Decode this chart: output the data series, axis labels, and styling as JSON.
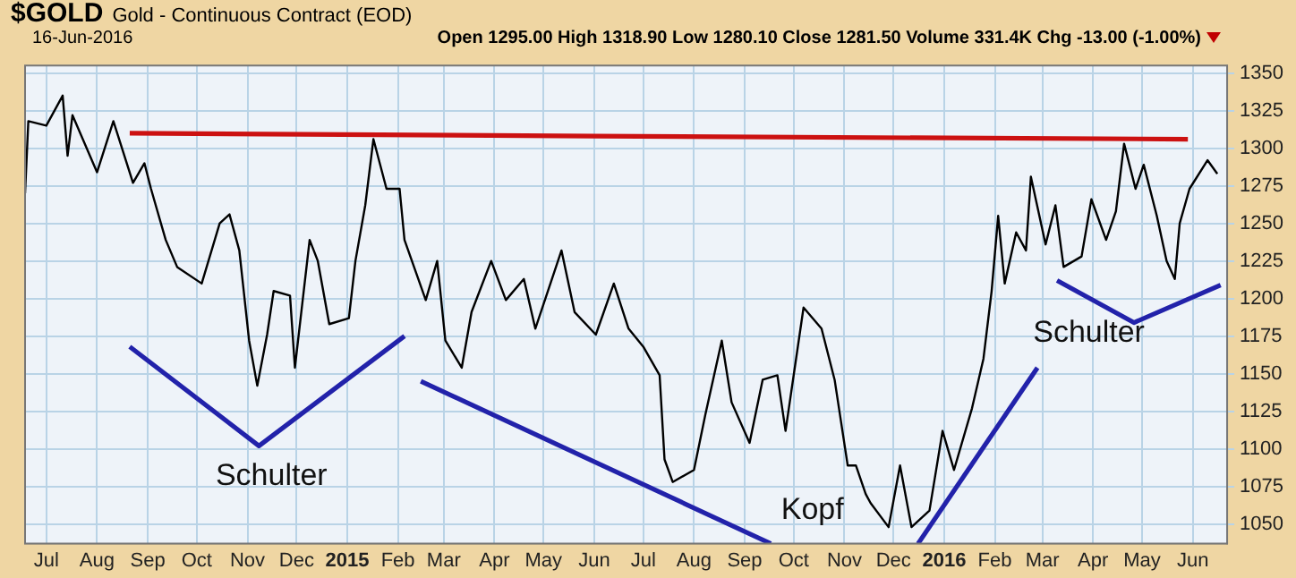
{
  "chart_data": {
    "type": "line",
    "title": "$GOLD",
    "subtitle": "Gold - Continuous Contract (EOD)",
    "annotations": [
      "16-Jun-2016",
      "Open 1295.00 High 1318.90 Low 1280.10 Close 1281.50 Volume 331.4K Chg -13.00 (-1.00%)",
      "Schulter",
      "Kopf",
      "Schulter"
    ],
    "series": [
      {
        "color": "#000000",
        "x": [
          "2014-06-18",
          "2014-06-20",
          "2014-07-01",
          "2014-07-11",
          "2014-07-14",
          "2014-07-17",
          "2014-08-01",
          "2014-08-11",
          "2014-08-23",
          "2014-08-30",
          "2014-09-03",
          "2014-09-12",
          "2014-09-19",
          "2014-10-04",
          "2014-10-15",
          "2014-10-21",
          "2014-10-27",
          "2014-11-02",
          "2014-11-07",
          "2014-11-13",
          "2014-11-17",
          "2014-11-27",
          "2014-11-30",
          "2014-12-09",
          "2014-12-14",
          "2014-12-21",
          "2015-01-02",
          "2015-01-06",
          "2015-01-12",
          "2015-01-17",
          "2015-01-25",
          "2015-02-02",
          "2015-02-05",
          "2015-02-18",
          "2015-02-25",
          "2015-03-02",
          "2015-03-12",
          "2015-03-18",
          "2015-03-30",
          "2015-04-08",
          "2015-04-19",
          "2015-04-26",
          "2015-05-12",
          "2015-05-20",
          "2015-06-02",
          "2015-06-13",
          "2015-06-22",
          "2015-07-01",
          "2015-07-11",
          "2015-07-14",
          "2015-07-19",
          "2015-08-01",
          "2015-08-08",
          "2015-08-18",
          "2015-08-24",
          "2015-09-04",
          "2015-09-12",
          "2015-09-21",
          "2015-09-26",
          "2015-10-07",
          "2015-10-18",
          "2015-10-26",
          "2015-11-03",
          "2015-11-08",
          "2015-11-14",
          "2015-11-17",
          "2015-11-28",
          "2015-12-05",
          "2015-12-12",
          "2015-12-23",
          "2015-12-31",
          "2016-01-07",
          "2016-01-18",
          "2016-01-25",
          "2016-01-30",
          "2016-02-03",
          "2016-02-07",
          "2016-02-14",
          "2016-02-20",
          "2016-02-23",
          "2016-03-03",
          "2016-03-09",
          "2016-03-14",
          "2016-03-25",
          "2016-03-31",
          "2016-04-09",
          "2016-04-15",
          "2016-04-20",
          "2016-04-27",
          "2016-05-02",
          "2016-05-10",
          "2016-05-16",
          "2016-05-21",
          "2016-05-24",
          "2016-05-30",
          "2016-06-10",
          "2016-06-16"
        ],
        "values": [
          1270,
          1318,
          1315,
          1335,
          1295,
          1322,
          1284,
          1318,
          1277,
          1290,
          1273,
          1239,
          1221,
          1210,
          1250,
          1256,
          1232,
          1172,
          1142,
          1176,
          1205,
          1202,
          1154,
          1239,
          1225,
          1183,
          1187,
          1225,
          1262,
          1306,
          1273,
          1273,
          1239,
          1199,
          1225,
          1172,
          1154,
          1191,
          1225,
          1199,
          1213,
          1180,
          1232,
          1191,
          1176,
          1210,
          1180,
          1168,
          1149,
          1093,
          1078,
          1086,
          1123,
          1172,
          1131,
          1104,
          1146,
          1149,
          1112,
          1194,
          1180,
          1146,
          1089,
          1089,
          1070,
          1064,
          1048,
          1089,
          1048,
          1059,
          1112,
          1086,
          1127,
          1160,
          1205,
          1255,
          1210,
          1244,
          1232,
          1281,
          1236,
          1262,
          1221,
          1228,
          1266,
          1239,
          1258,
          1303,
          1273,
          1289,
          1255,
          1225,
          1213,
          1250,
          1273,
          1292,
          1283
        ]
      },
      {
        "color": "#cc1111",
        "x": [
          "2014-08-21",
          "2015-06-01",
          "2016-05-29"
        ],
        "values": [
          1310,
          1308,
          1306
        ]
      },
      {
        "color": "#2222aa",
        "x": [
          "2014-08-21",
          "2014-11-08",
          "2015-02-05"
        ],
        "values": [
          1168,
          1102,
          1175
        ]
      },
      {
        "color": "#2222aa",
        "x": [
          "2015-02-15",
          "2015-09-17"
        ],
        "values": [
          1145,
          1037
        ]
      },
      {
        "color": "#2222aa",
        "x": [
          "2015-12-16",
          "2016-02-27"
        ],
        "values": [
          1037,
          1154
        ]
      },
      {
        "color": "#2222aa",
        "x": [
          "2016-03-10",
          "2016-04-26",
          "2016-06-18"
        ],
        "values": [
          1212,
          1184,
          1209
        ]
      }
    ],
    "xlim": [
      "2014-06-18",
      "2016-06-22"
    ],
    "xticks": [
      {
        "value": "2014-07-01",
        "label": "Jul"
      },
      {
        "value": "2014-08-01",
        "label": "Aug"
      },
      {
        "value": "2014-09-01",
        "label": "Sep"
      },
      {
        "value": "2014-10-01",
        "label": "Oct"
      },
      {
        "value": "2014-11-01",
        "label": "Nov"
      },
      {
        "value": "2014-12-01",
        "label": "Dec"
      },
      {
        "value": "2015-01-01",
        "label": "2015"
      },
      {
        "value": "2015-02-01",
        "label": "Feb"
      },
      {
        "value": "2015-03-01",
        "label": "Mar"
      },
      {
        "value": "2015-04-01",
        "label": "Apr"
      },
      {
        "value": "2015-05-01",
        "label": "May"
      },
      {
        "value": "2015-06-01",
        "label": "Jun"
      },
      {
        "value": "2015-07-01",
        "label": "Jul"
      },
      {
        "value": "2015-08-01",
        "label": "Aug"
      },
      {
        "value": "2015-09-01",
        "label": "Sep"
      },
      {
        "value": "2015-10-01",
        "label": "Oct"
      },
      {
        "value": "2015-11-01",
        "label": "Nov"
      },
      {
        "value": "2015-12-01",
        "label": "Dec"
      },
      {
        "value": "2016-01-01",
        "label": "2016"
      },
      {
        "value": "2016-02-01",
        "label": "Feb"
      },
      {
        "value": "2016-03-01",
        "label": "Mar"
      },
      {
        "value": "2016-04-01",
        "label": "Apr"
      },
      {
        "value": "2016-05-01",
        "label": "May"
      },
      {
        "value": "2016-06-01",
        "label": "Jun"
      }
    ],
    "ylim": [
      1037,
      1355
    ],
    "yticks": [
      1050,
      1075,
      1100,
      1125,
      1150,
      1175,
      1200,
      1225,
      1250,
      1275,
      1300,
      1325,
      1350
    ],
    "grid": true,
    "marker": "none",
    "line_style": "solid"
  }
}
